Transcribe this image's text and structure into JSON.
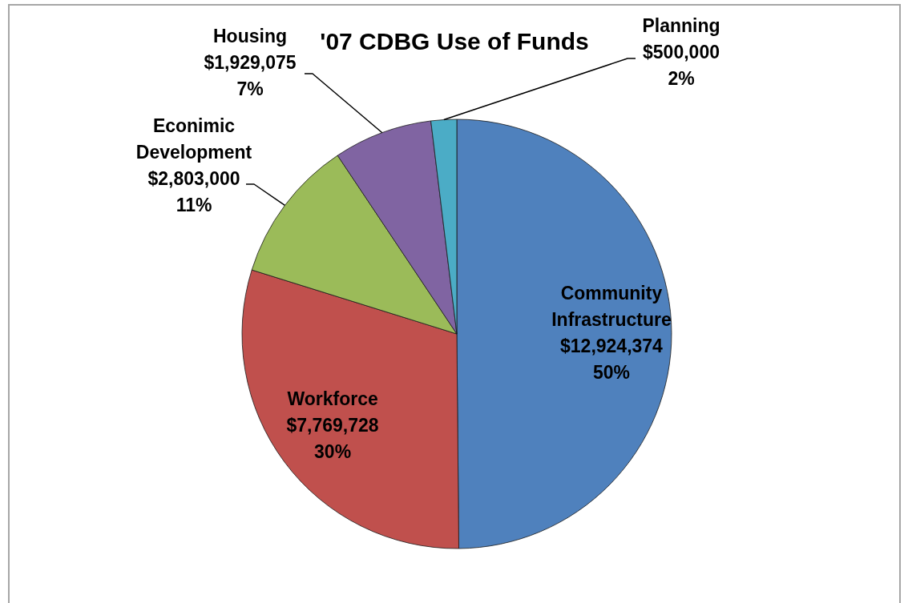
{
  "chart_data": {
    "type": "pie",
    "title": "'07 CDBG Use of Funds",
    "categories": [
      "Community Infrastructure",
      "Workforce",
      "Econimic Development",
      "Housing",
      "Planning"
    ],
    "values": [
      12924374,
      7769728,
      2803000,
      1929075,
      500000
    ],
    "colors": [
      "#4f81bd",
      "#c0504d",
      "#9bbb59",
      "#8064a2",
      "#4bacc6"
    ],
    "value_labels": [
      "$12,924,374\n50%",
      "$7,769,728\n30%",
      "$2,803,000\n11%",
      "$1,929,075\n7%",
      "$500,000\n2%"
    ],
    "legend": false
  }
}
